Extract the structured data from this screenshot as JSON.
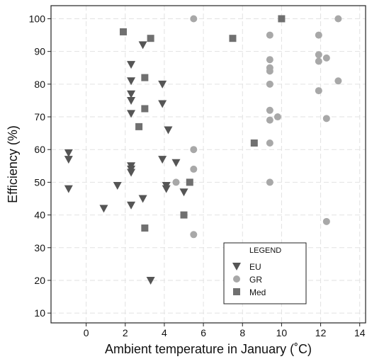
{
  "chart_data": {
    "type": "scatter",
    "title": "",
    "xlabel": "Ambient temperature in January (˚C)",
    "ylabel": "Efficiency (%)",
    "xlim": [
      -1.8,
      14.3
    ],
    "ylim": [
      7,
      104
    ],
    "x_ticks": [
      0,
      2,
      4,
      6,
      8,
      10,
      12,
      14
    ],
    "y_ticks": [
      10,
      20,
      30,
      40,
      50,
      60,
      70,
      80,
      90,
      100
    ],
    "grid": true,
    "legend": {
      "title": "LEGEND",
      "position": "bottom-right"
    },
    "series": [
      {
        "name": "EU",
        "marker": "triangle-down",
        "color": "#555555",
        "points": [
          [
            -0.9,
            59
          ],
          [
            -0.9,
            57
          ],
          [
            -0.9,
            48
          ],
          [
            0.9,
            42
          ],
          [
            1.6,
            49
          ],
          [
            2.3,
            86
          ],
          [
            2.3,
            81
          ],
          [
            2.3,
            77
          ],
          [
            2.3,
            75
          ],
          [
            2.3,
            71
          ],
          [
            2.3,
            55
          ],
          [
            2.3,
            54
          ],
          [
            2.3,
            53
          ],
          [
            2.3,
            43
          ],
          [
            2.9,
            92
          ],
          [
            2.9,
            45
          ],
          [
            3.3,
            20
          ],
          [
            3.9,
            80
          ],
          [
            3.9,
            74
          ],
          [
            3.9,
            57
          ],
          [
            4.1,
            49
          ],
          [
            4.1,
            48
          ],
          [
            4.2,
            66
          ],
          [
            4.6,
            56
          ],
          [
            5.0,
            47
          ]
        ]
      },
      {
        "name": "GR",
        "marker": "circle",
        "color": "#a8a8a8",
        "points": [
          [
            5.5,
            100
          ],
          [
            5.5,
            60
          ],
          [
            5.5,
            54
          ],
          [
            5.5,
            34
          ],
          [
            4.6,
            50
          ],
          [
            9.4,
            95
          ],
          [
            9.4,
            87.5
          ],
          [
            9.4,
            85
          ],
          [
            9.4,
            84
          ],
          [
            9.4,
            80
          ],
          [
            9.4,
            72
          ],
          [
            9.4,
            69
          ],
          [
            9.4,
            62
          ],
          [
            9.4,
            50
          ],
          [
            9.8,
            70
          ],
          [
            11.9,
            95
          ],
          [
            11.9,
            89
          ],
          [
            11.9,
            87
          ],
          [
            11.9,
            78
          ],
          [
            12.3,
            88
          ],
          [
            12.3,
            69.5
          ],
          [
            12.3,
            38
          ],
          [
            12.9,
            100
          ],
          [
            12.9,
            81
          ]
        ]
      },
      {
        "name": "Med",
        "marker": "square",
        "color": "#707070",
        "points": [
          [
            1.9,
            96
          ],
          [
            3.3,
            94
          ],
          [
            3.0,
            82
          ],
          [
            3.0,
            72.5
          ],
          [
            2.7,
            67
          ],
          [
            3.0,
            36
          ],
          [
            5.3,
            50
          ],
          [
            5.0,
            40
          ],
          [
            7.5,
            94
          ],
          [
            8.6,
            62
          ],
          [
            10.0,
            100
          ]
        ]
      }
    ]
  }
}
